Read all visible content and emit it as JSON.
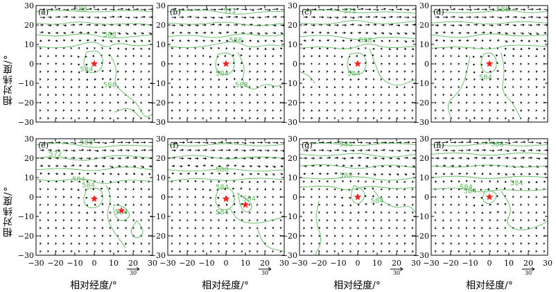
{
  "figure": {
    "ylabel": "相对纬度/°",
    "xlabel": "相对经度/°",
    "ref_vector_label": "30",
    "contour_color": "#5cb85c",
    "vector_color": "#000000",
    "star_color": "#ff2020"
  },
  "chart_data": [
    {
      "type": "vector-contour",
      "panel": "(a)",
      "xlim": [
        -30,
        30
      ],
      "ylim": [
        -30,
        30
      ],
      "xticks": [
        -30,
        -20,
        -10,
        0,
        10,
        20,
        30
      ],
      "yticks": [
        30,
        20,
        10,
        0,
        -10,
        -20,
        -30
      ],
      "contour_labels": [
        "588",
        "588",
        "584",
        "588"
      ],
      "stars": [
        [
          0,
          0
        ]
      ],
      "show_xticklabels": false
    },
    {
      "type": "vector-contour",
      "panel": "(b)",
      "xlim": [
        -30,
        30
      ],
      "ylim": [
        -30,
        30
      ],
      "xticks": [
        -30,
        -20,
        -10,
        0,
        10,
        20,
        30
      ],
      "yticks": [
        30,
        20,
        10,
        0,
        -10,
        -20,
        -30
      ],
      "contour_labels": [
        "572",
        "588",
        "584",
        "588"
      ],
      "stars": [
        [
          0,
          0
        ]
      ],
      "show_xticklabels": false
    },
    {
      "type": "vector-contour",
      "panel": "(c)",
      "xlim": [
        -30,
        30
      ],
      "ylim": [
        -30,
        30
      ],
      "xticks": [
        -30,
        -20,
        -10,
        0,
        10,
        20,
        30
      ],
      "yticks": [
        30,
        20,
        10,
        0,
        -10,
        -20,
        -30
      ],
      "contour_labels": [
        "572",
        "588",
        "584"
      ],
      "stars": [
        [
          0,
          0
        ]
      ],
      "show_xticklabels": false
    },
    {
      "type": "vector-contour",
      "panel": "(d)",
      "xlim": [
        -30,
        30
      ],
      "ylim": [
        -30,
        30
      ],
      "xticks": [
        -30,
        -20,
        -10,
        0,
        10,
        20,
        30
      ],
      "yticks": [
        30,
        20,
        10,
        0,
        -10,
        -20,
        -30
      ],
      "contour_labels": [
        "588",
        "584"
      ],
      "stars": [
        [
          0,
          0
        ]
      ],
      "show_xticklabels": false
    },
    {
      "type": "vector-contour",
      "panel": "(e)",
      "xlim": [
        -30,
        30
      ],
      "ylim": [
        -30,
        30
      ],
      "xticks": [
        -30,
        -20,
        -10,
        0,
        10,
        20,
        30
      ],
      "yticks": [
        30,
        20,
        10,
        0,
        -10,
        -20,
        -30
      ],
      "contour_labels": [
        "588",
        "572",
        "584",
        "584",
        "584"
      ],
      "stars": [
        [
          0,
          -1
        ],
        [
          14,
          -7
        ]
      ],
      "show_xticklabels": true
    },
    {
      "type": "vector-contour",
      "panel": "(f)",
      "xlim": [
        -30,
        30
      ],
      "ylim": [
        -30,
        30
      ],
      "xticks": [
        -30,
        -20,
        -10,
        0,
        10,
        20,
        30
      ],
      "yticks": [
        30,
        20,
        10,
        0,
        -10,
        -20,
        -30
      ],
      "contour_labels": [
        "588",
        "584",
        "584",
        "584"
      ],
      "stars": [
        [
          0,
          -1
        ],
        [
          10,
          -4
        ]
      ],
      "show_xticklabels": true
    },
    {
      "type": "vector-contour",
      "panel": "(g)",
      "xlim": [
        -30,
        30
      ],
      "ylim": [
        -30,
        30
      ],
      "xticks": [
        -30,
        -20,
        -10,
        0,
        10,
        20,
        30
      ],
      "yticks": [
        30,
        20,
        10,
        0,
        -10,
        -20,
        -30
      ],
      "contour_labels": [
        "588",
        "588",
        "584"
      ],
      "stars": [
        [
          0,
          0
        ]
      ],
      "show_xticklabels": true
    },
    {
      "type": "vector-contour",
      "panel": "(h)",
      "xlim": [
        -30,
        30
      ],
      "ylim": [
        -30,
        30
      ],
      "xticks": [
        -30,
        -20,
        -10,
        0,
        10,
        20,
        30
      ],
      "yticks": [
        30,
        20,
        10,
        0,
        -10,
        -20,
        -30
      ],
      "contour_labels": [
        "588",
        "584",
        "584",
        "584"
      ],
      "stars": [
        [
          0,
          0
        ]
      ],
      "show_xticklabels": true
    }
  ]
}
